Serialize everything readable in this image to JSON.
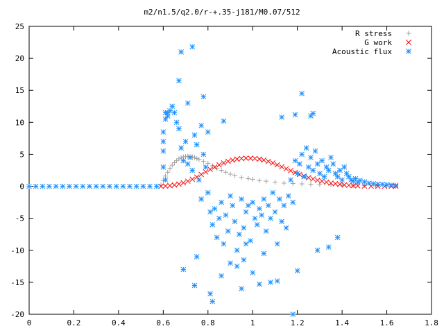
{
  "chart_data": {
    "type": "scatter",
    "title": "m2/n1.5/q2.0/r-+.35-j181/M0.07/512",
    "xlabel": "",
    "ylabel": "",
    "xlim": [
      0,
      1.8
    ],
    "ylim": [
      -20,
      25
    ],
    "xticks": [
      0,
      0.2,
      0.4,
      0.6,
      0.8,
      1,
      1.2,
      1.4,
      1.6,
      1.8
    ],
    "yticks": [
      -20,
      -15,
      -10,
      -5,
      0,
      5,
      10,
      15,
      20,
      25
    ],
    "xtick_labels": [
      "0",
      "0.2",
      "0.4",
      "0.6",
      "0.8",
      "1",
      "1.2",
      "1.4",
      "1.6",
      "1.8"
    ],
    "ytick_labels": [
      "-20",
      "-15",
      "-10",
      "-5",
      "0",
      "5",
      "10",
      "15",
      "20",
      "25"
    ],
    "grid": false,
    "legend_position": "top-right",
    "series": [
      {
        "name": "R stress",
        "marker": "plus",
        "color": "#a0a0a0",
        "x": [
          0.59,
          0.6,
          0.61,
          0.62,
          0.63,
          0.64,
          0.65,
          0.66,
          0.67,
          0.68,
          0.69,
          0.7,
          0.71,
          0.72,
          0.73,
          0.74,
          0.75,
          0.76,
          0.78,
          0.8,
          0.82,
          0.84,
          0.86,
          0.88,
          0.9,
          0.92,
          0.95,
          0.98,
          1.0,
          1.03,
          1.06,
          1.1,
          1.14,
          1.18,
          1.22,
          1.26,
          1.3,
          1.35,
          1.4,
          1.45,
          1.5,
          1.55,
          1.6,
          1.64
        ],
        "y": [
          0.2,
          0.9,
          1.6,
          2.2,
          2.8,
          3.3,
          3.7,
          4.0,
          4.3,
          4.5,
          4.6,
          4.65,
          4.7,
          4.65,
          4.6,
          4.5,
          4.35,
          4.2,
          3.9,
          3.6,
          3.2,
          2.8,
          2.5,
          2.2,
          1.9,
          1.7,
          1.4,
          1.2,
          1.1,
          0.9,
          0.8,
          0.65,
          0.5,
          0.45,
          0.38,
          0.32,
          0.28,
          0.22,
          0.18,
          0.14,
          0.1,
          0.07,
          0.04,
          0.02
        ]
      },
      {
        "name": "G work",
        "marker": "cross",
        "color": "#ff0000",
        "x": [
          0.59,
          0.61,
          0.63,
          0.65,
          0.67,
          0.69,
          0.71,
          0.73,
          0.75,
          0.77,
          0.79,
          0.81,
          0.83,
          0.85,
          0.87,
          0.89,
          0.91,
          0.93,
          0.95,
          0.97,
          0.99,
          1.01,
          1.03,
          1.05,
          1.07,
          1.09,
          1.11,
          1.13,
          1.15,
          1.17,
          1.19,
          1.21,
          1.23,
          1.25,
          1.27,
          1.29,
          1.31,
          1.33,
          1.35,
          1.37,
          1.39,
          1.41,
          1.43,
          1.45,
          1.47,
          1.5,
          1.53,
          1.56,
          1.59,
          1.62,
          1.64
        ],
        "y": [
          0.0,
          0.05,
          0.1,
          0.2,
          0.35,
          0.55,
          0.8,
          1.1,
          1.45,
          1.85,
          2.25,
          2.65,
          3.0,
          3.35,
          3.65,
          3.9,
          4.1,
          4.25,
          4.35,
          4.4,
          4.4,
          4.35,
          4.25,
          4.1,
          3.9,
          3.65,
          3.35,
          3.05,
          2.75,
          2.45,
          2.15,
          1.85,
          1.6,
          1.35,
          1.15,
          0.95,
          0.8,
          0.65,
          0.5,
          0.4,
          0.3,
          0.22,
          0.16,
          0.1,
          0.07,
          0.04,
          0.02,
          0.01,
          0.0,
          0.0,
          0.0
        ]
      },
      {
        "name": "Acoustic flux",
        "marker": "star",
        "color": "#1e90ff",
        "x": [
          0,
          0.03,
          0.06,
          0.09,
          0.12,
          0.15,
          0.18,
          0.21,
          0.24,
          0.27,
          0.3,
          0.33,
          0.36,
          0.39,
          0.42,
          0.45,
          0.48,
          0.51,
          0.54,
          0.57,
          0.6,
          0.6,
          0.61,
          0.61,
          0.62,
          0.62,
          0.63,
          0.6,
          0.6,
          0.61,
          0.64,
          0.65,
          0.66,
          0.67,
          0.68,
          0.69,
          0.7,
          0.71,
          0.72,
          0.73,
          0.74,
          0.75,
          0.76,
          0.77,
          0.78,
          0.79,
          0.8,
          0.81,
          0.82,
          0.83,
          0.84,
          0.85,
          0.86,
          0.87,
          0.88,
          0.89,
          0.9,
          0.91,
          0.92,
          0.93,
          0.94,
          0.95,
          0.96,
          0.97,
          0.98,
          0.99,
          1.0,
          1.01,
          1.02,
          1.03,
          1.04,
          1.05,
          1.06,
          1.07,
          1.08,
          1.09,
          1.1,
          1.11,
          1.12,
          1.13,
          1.14,
          1.15,
          1.16,
          1.17,
          1.18,
          1.19,
          1.2,
          1.21,
          1.22,
          1.23,
          1.24,
          1.25,
          1.26,
          1.27,
          1.28,
          1.29,
          1.3,
          1.31,
          1.32,
          1.33,
          1.34,
          1.35,
          1.36,
          1.37,
          1.38,
          1.39,
          1.4,
          1.41,
          1.42,
          1.43,
          1.44,
          1.45,
          1.46,
          1.47,
          1.48,
          1.5,
          1.52,
          1.54,
          1.56,
          1.58,
          1.6,
          1.62,
          1.64,
          0.68,
          0.73,
          0.67,
          0.71,
          0.78,
          0.8,
          0.77,
          0.74,
          0.69,
          0.75,
          0.82,
          0.86,
          0.9,
          0.95,
          0.97,
          1.0,
          1.05,
          1.08,
          1.18,
          1.26,
          1.22,
          1.13,
          1.19,
          1.27,
          0.87,
          0.81,
          0.93,
          0.96,
          1.03,
          1.11,
          1.2,
          1.29,
          1.34,
          1.38
        ],
        "y": [
          0,
          0,
          0,
          0,
          0,
          0,
          0,
          0,
          0,
          0,
          0,
          0,
          0,
          0,
          0,
          0,
          0,
          0,
          0,
          0,
          5.5,
          8.5,
          10.5,
          11.5,
          11.5,
          11.0,
          11.8,
          7.0,
          3.0,
          1.0,
          12.5,
          11.5,
          10.0,
          9.0,
          6.0,
          4.0,
          7.0,
          3.5,
          4.5,
          2.5,
          8.0,
          6.5,
          1.0,
          -2.0,
          5.0,
          3.0,
          -1.0,
          -4.0,
          -6.0,
          -3.5,
          -8.0,
          -5.0,
          -2.5,
          -9.0,
          -4.5,
          -7.0,
          -1.5,
          -3.0,
          -5.5,
          -10.0,
          -7.5,
          -2.0,
          -6.5,
          -4.0,
          -3.0,
          -8.5,
          -2.5,
          -5.0,
          -6.0,
          -3.5,
          -4.5,
          -2.0,
          -7.0,
          -3.0,
          -5.0,
          -1.0,
          -4.0,
          -9.0,
          -2.0,
          -5.5,
          -3.0,
          -6.5,
          -1.5,
          1.0,
          -2.5,
          4.0,
          2.0,
          3.5,
          5.0,
          1.5,
          6.0,
          3.0,
          4.5,
          2.5,
          5.5,
          3.5,
          2.0,
          4.0,
          1.5,
          3.0,
          2.5,
          4.5,
          3.5,
          2.0,
          1.5,
          2.5,
          1.0,
          3.0,
          2.0,
          1.5,
          1.0,
          0.8,
          1.2,
          0.6,
          0.9,
          0.7,
          0.5,
          0.4,
          0.35,
          0.3,
          0.25,
          0.2,
          0.15,
          21.0,
          21.8,
          16.5,
          13.0,
          14.0,
          8.5,
          9.5,
          -15.5,
          -13.0,
          -11.0,
          -18.0,
          -14.0,
          -12.0,
          -16.0,
          -9.0,
          -13.5,
          -10.5,
          -15.0,
          -20.0,
          11.0,
          14.5,
          10.8,
          11.2,
          11.4,
          10.2,
          -16.8,
          -12.5,
          -11.5,
          -15.3,
          -14.8,
          -13.2,
          -10.0,
          -9.5,
          -8.0
        ]
      }
    ]
  }
}
